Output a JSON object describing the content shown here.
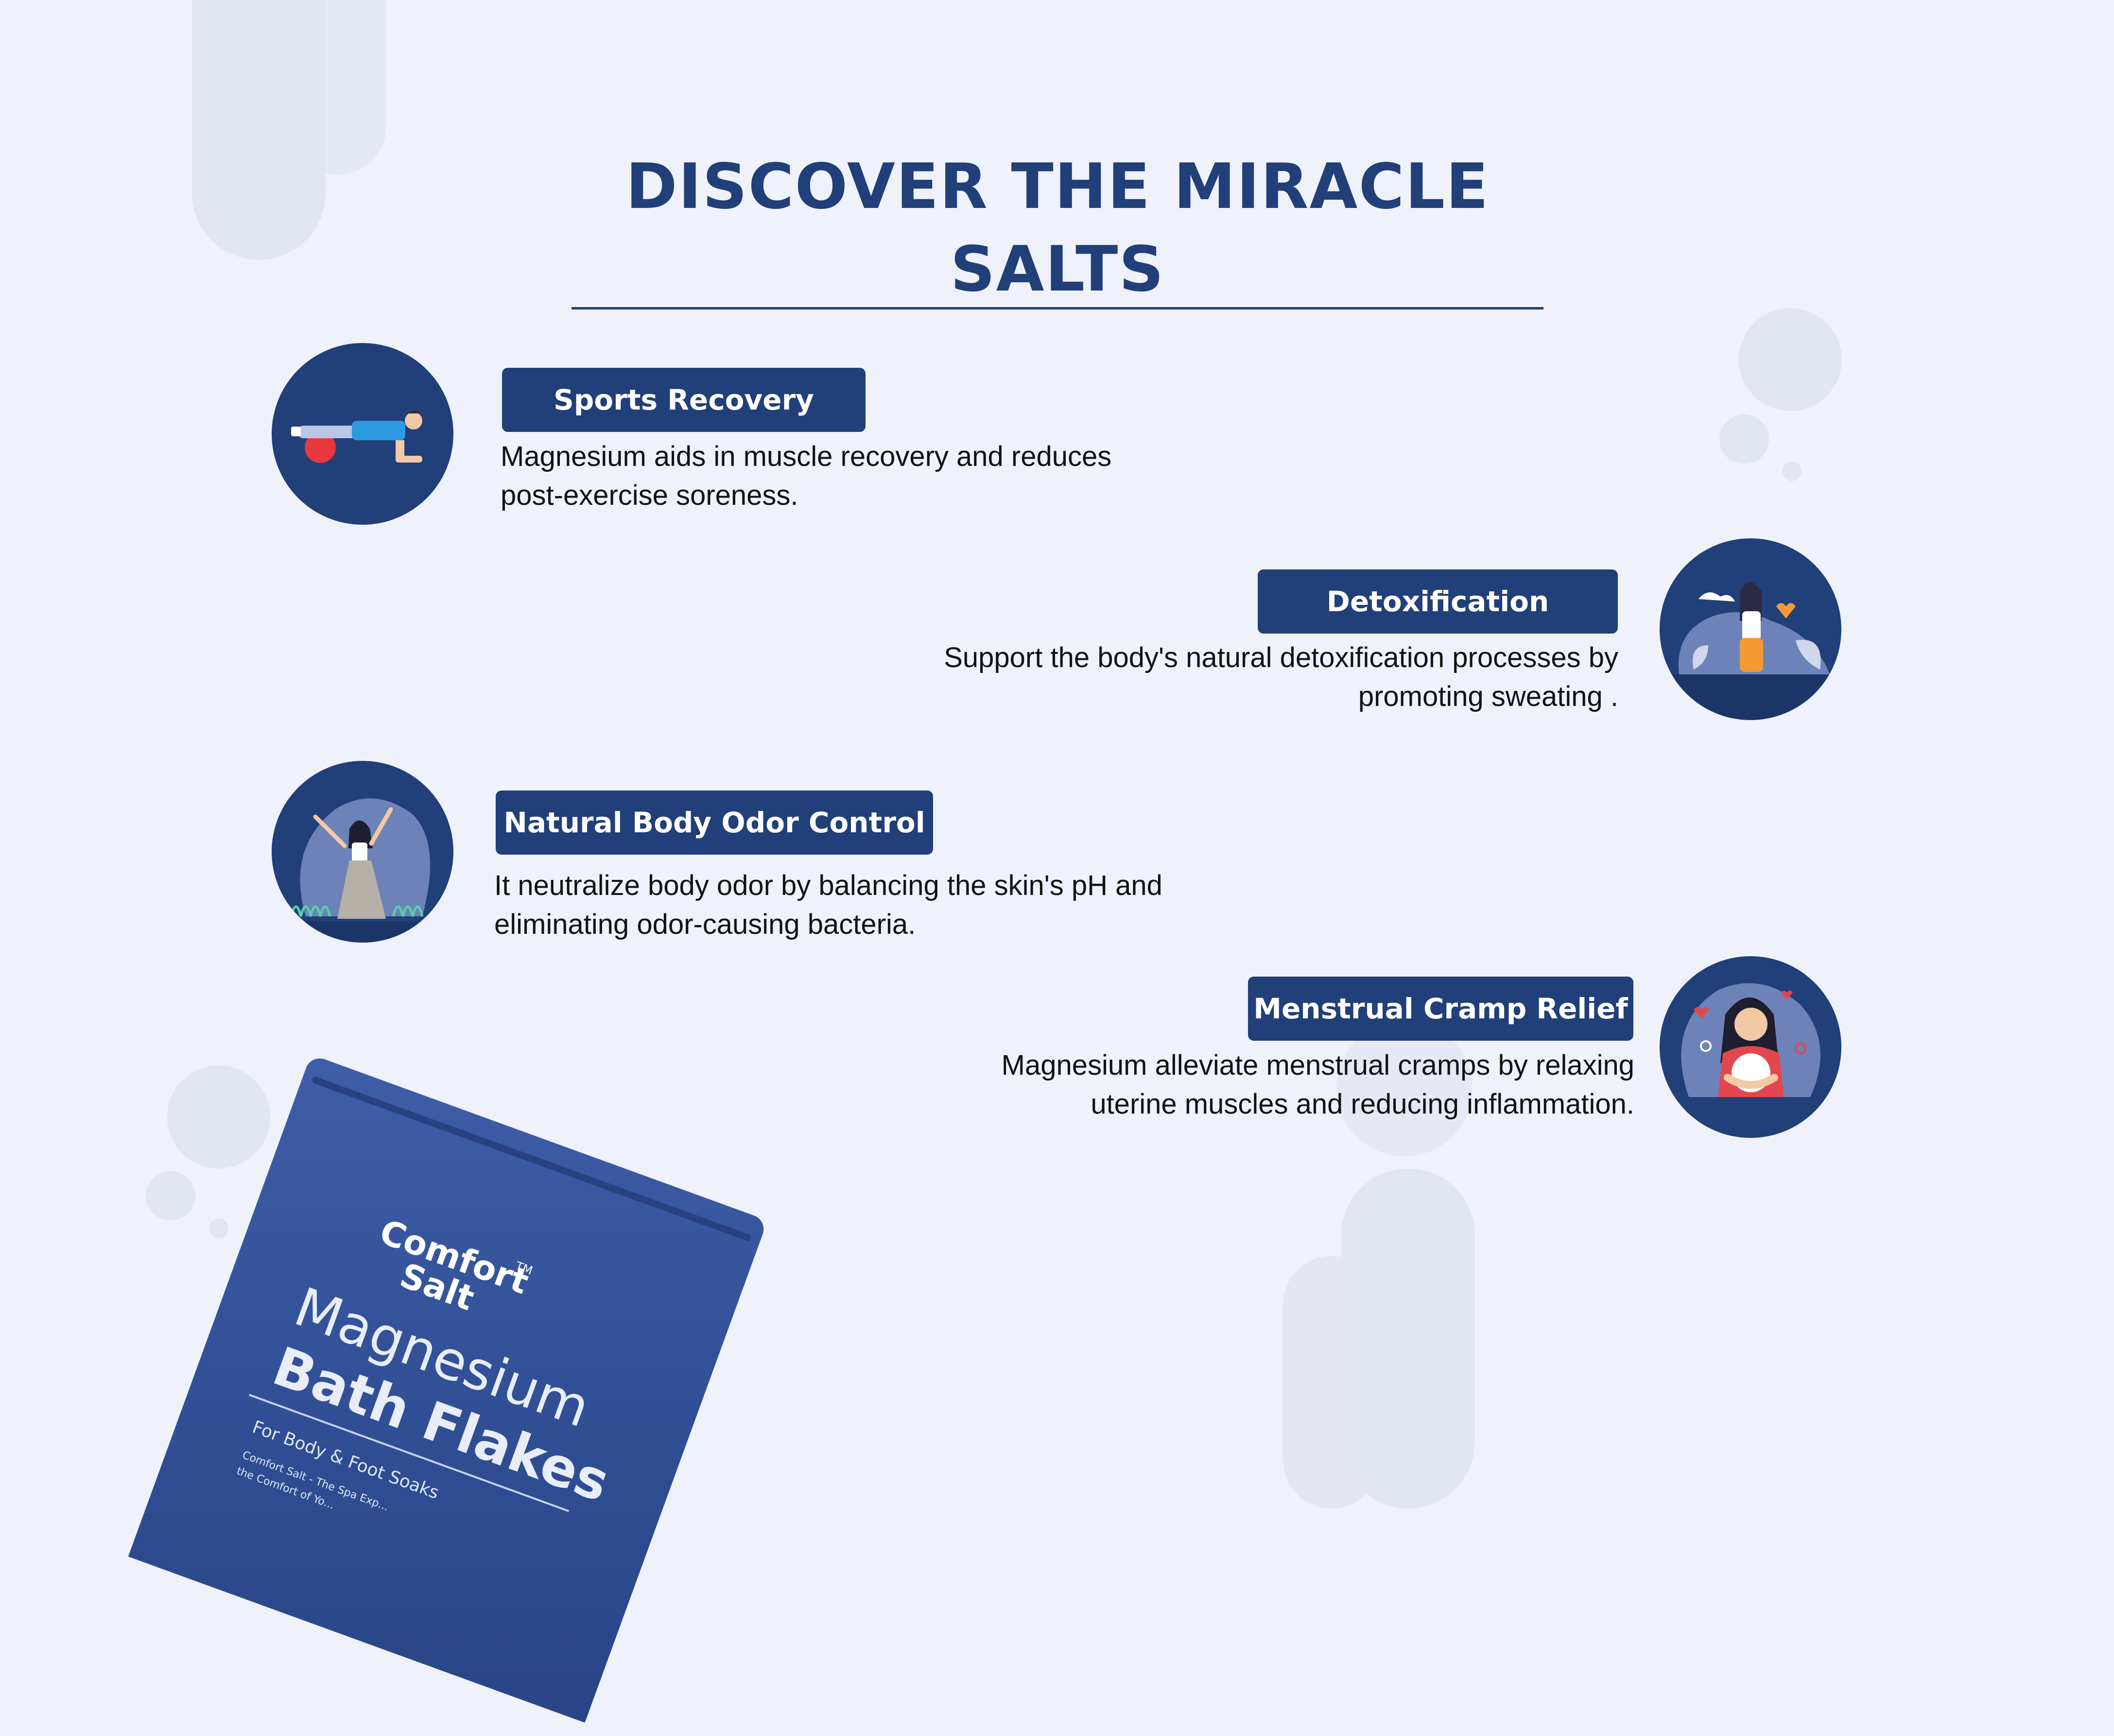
{
  "page": {
    "title": "DISCOVER THE MIRACLE SALTS"
  },
  "benefits": [
    {
      "label": "Sports Recovery",
      "lines": [
        "Magnesium aids in muscle recovery and reduces",
        "post-exercise soreness."
      ],
      "icon": "plank-exercise-icon"
    },
    {
      "label": "Detoxification",
      "lines": [
        "Support the body's natural detoxification processes by",
        "promoting sweating ."
      ],
      "icon": "detox-woman-icon"
    },
    {
      "label": "Natural Body Odor Control",
      "lines": [
        "It neutralize body odor by balancing the skin's pH and",
        "eliminating odor-causing bacteria."
      ],
      "icon": "dancing-woman-icon"
    },
    {
      "label": "Menstrual Cramp Relief",
      "lines": [
        "Magnesium alleviate menstrual cramps by relaxing",
        "uterine muscles and reducing inflammation."
      ],
      "icon": "cramp-relief-woman-icon"
    }
  ],
  "product": {
    "brand_line1": "Comfort",
    "brand_line2": "Salt",
    "trademark": "TM",
    "name_line1": "Magnesium",
    "name_line2": "Bath Flakes",
    "subtitle": "For Body & Foot Soaks",
    "fine_print_1": "Comfort Salt - The Spa Exp...",
    "fine_print_2": "the Comfort of Yo..."
  },
  "colors": {
    "primary": "#213f78",
    "background": "#eff2fb",
    "decor": "#e2e6f1",
    "text": "#121212"
  }
}
